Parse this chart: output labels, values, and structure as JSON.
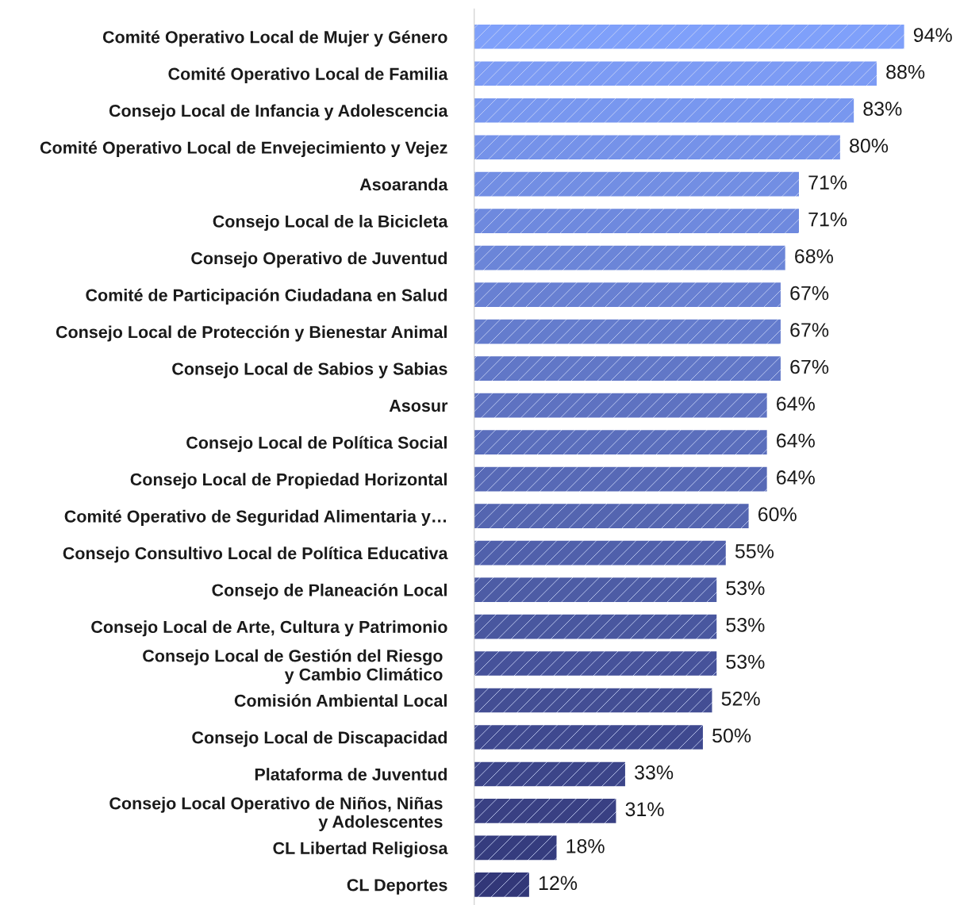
{
  "chart_data": {
    "type": "bar",
    "orientation": "horizontal",
    "grid": false,
    "legend": false,
    "tick_labels": "y",
    "categories": [
      "Comité Operativo Local de Mujer y Género",
      "Comité Operativo Local de Familia",
      "Consejo Local de Infancia y Adolescencia",
      "Comité Operativo Local de Envejecimiento y Vejez",
      "Asoaranda",
      "Consejo Local de la Bicicleta",
      "Consejo Operativo de Juventud",
      "Comité de Participación Ciudadana en Salud",
      "Consejo Local de Protección y Bienestar Animal",
      "Consejo Local de Sabios y Sabias",
      "Asosur",
      "Consejo Local de Política Social",
      "Consejo Local de Propiedad Horizontal",
      "Comité Operativo de Seguridad Alimentaria y…",
      "Consejo Consultivo Local de Política Educativa",
      "Consejo de Planeación Local",
      "Consejo Local de Arte, Cultura y Patrimonio",
      "Consejo Local de Gestión del Riesgo \ny Cambio Climático ",
      "Comisión Ambiental Local",
      "Consejo Local de Discapacidad",
      "Plataforma de Juventud",
      "Consejo Local Operativo de Niños, Niñas \ny Adolescentes ",
      "CL Libertad Religiosa",
      "CL Deportes"
    ],
    "values": [
      94,
      88,
      83,
      80,
      71,
      71,
      68,
      67,
      67,
      67,
      64,
      64,
      64,
      60,
      55,
      53,
      53,
      53,
      52,
      50,
      33,
      31,
      18,
      12
    ],
    "value_labels": [
      "94%",
      "88%",
      "83%",
      "80%",
      "71%",
      "71%",
      "68%",
      "67%",
      "67%",
      "67%",
      "64%",
      "64%",
      "64%",
      "60%",
      "55%",
      "53%",
      "53%",
      "53%",
      "52%",
      "50%",
      "33%",
      "31%",
      "18%",
      "12%"
    ],
    "colors": [
      "#7fa0fa",
      "#7c9bf4",
      "#7897ef",
      "#7592e9",
      "#728ee3",
      "#6e89de",
      "#6b85d8",
      "#6880d2",
      "#647ccd",
      "#6177c7",
      "#5e72c1",
      "#5a6ebc",
      "#5769b6",
      "#5465b0",
      "#5060ab",
      "#4d5ca5",
      "#49579f",
      "#46529a",
      "#434e94",
      "#3f498f",
      "#3c4589",
      "#394083",
      "#353c7e",
      "#323778"
    ]
  }
}
